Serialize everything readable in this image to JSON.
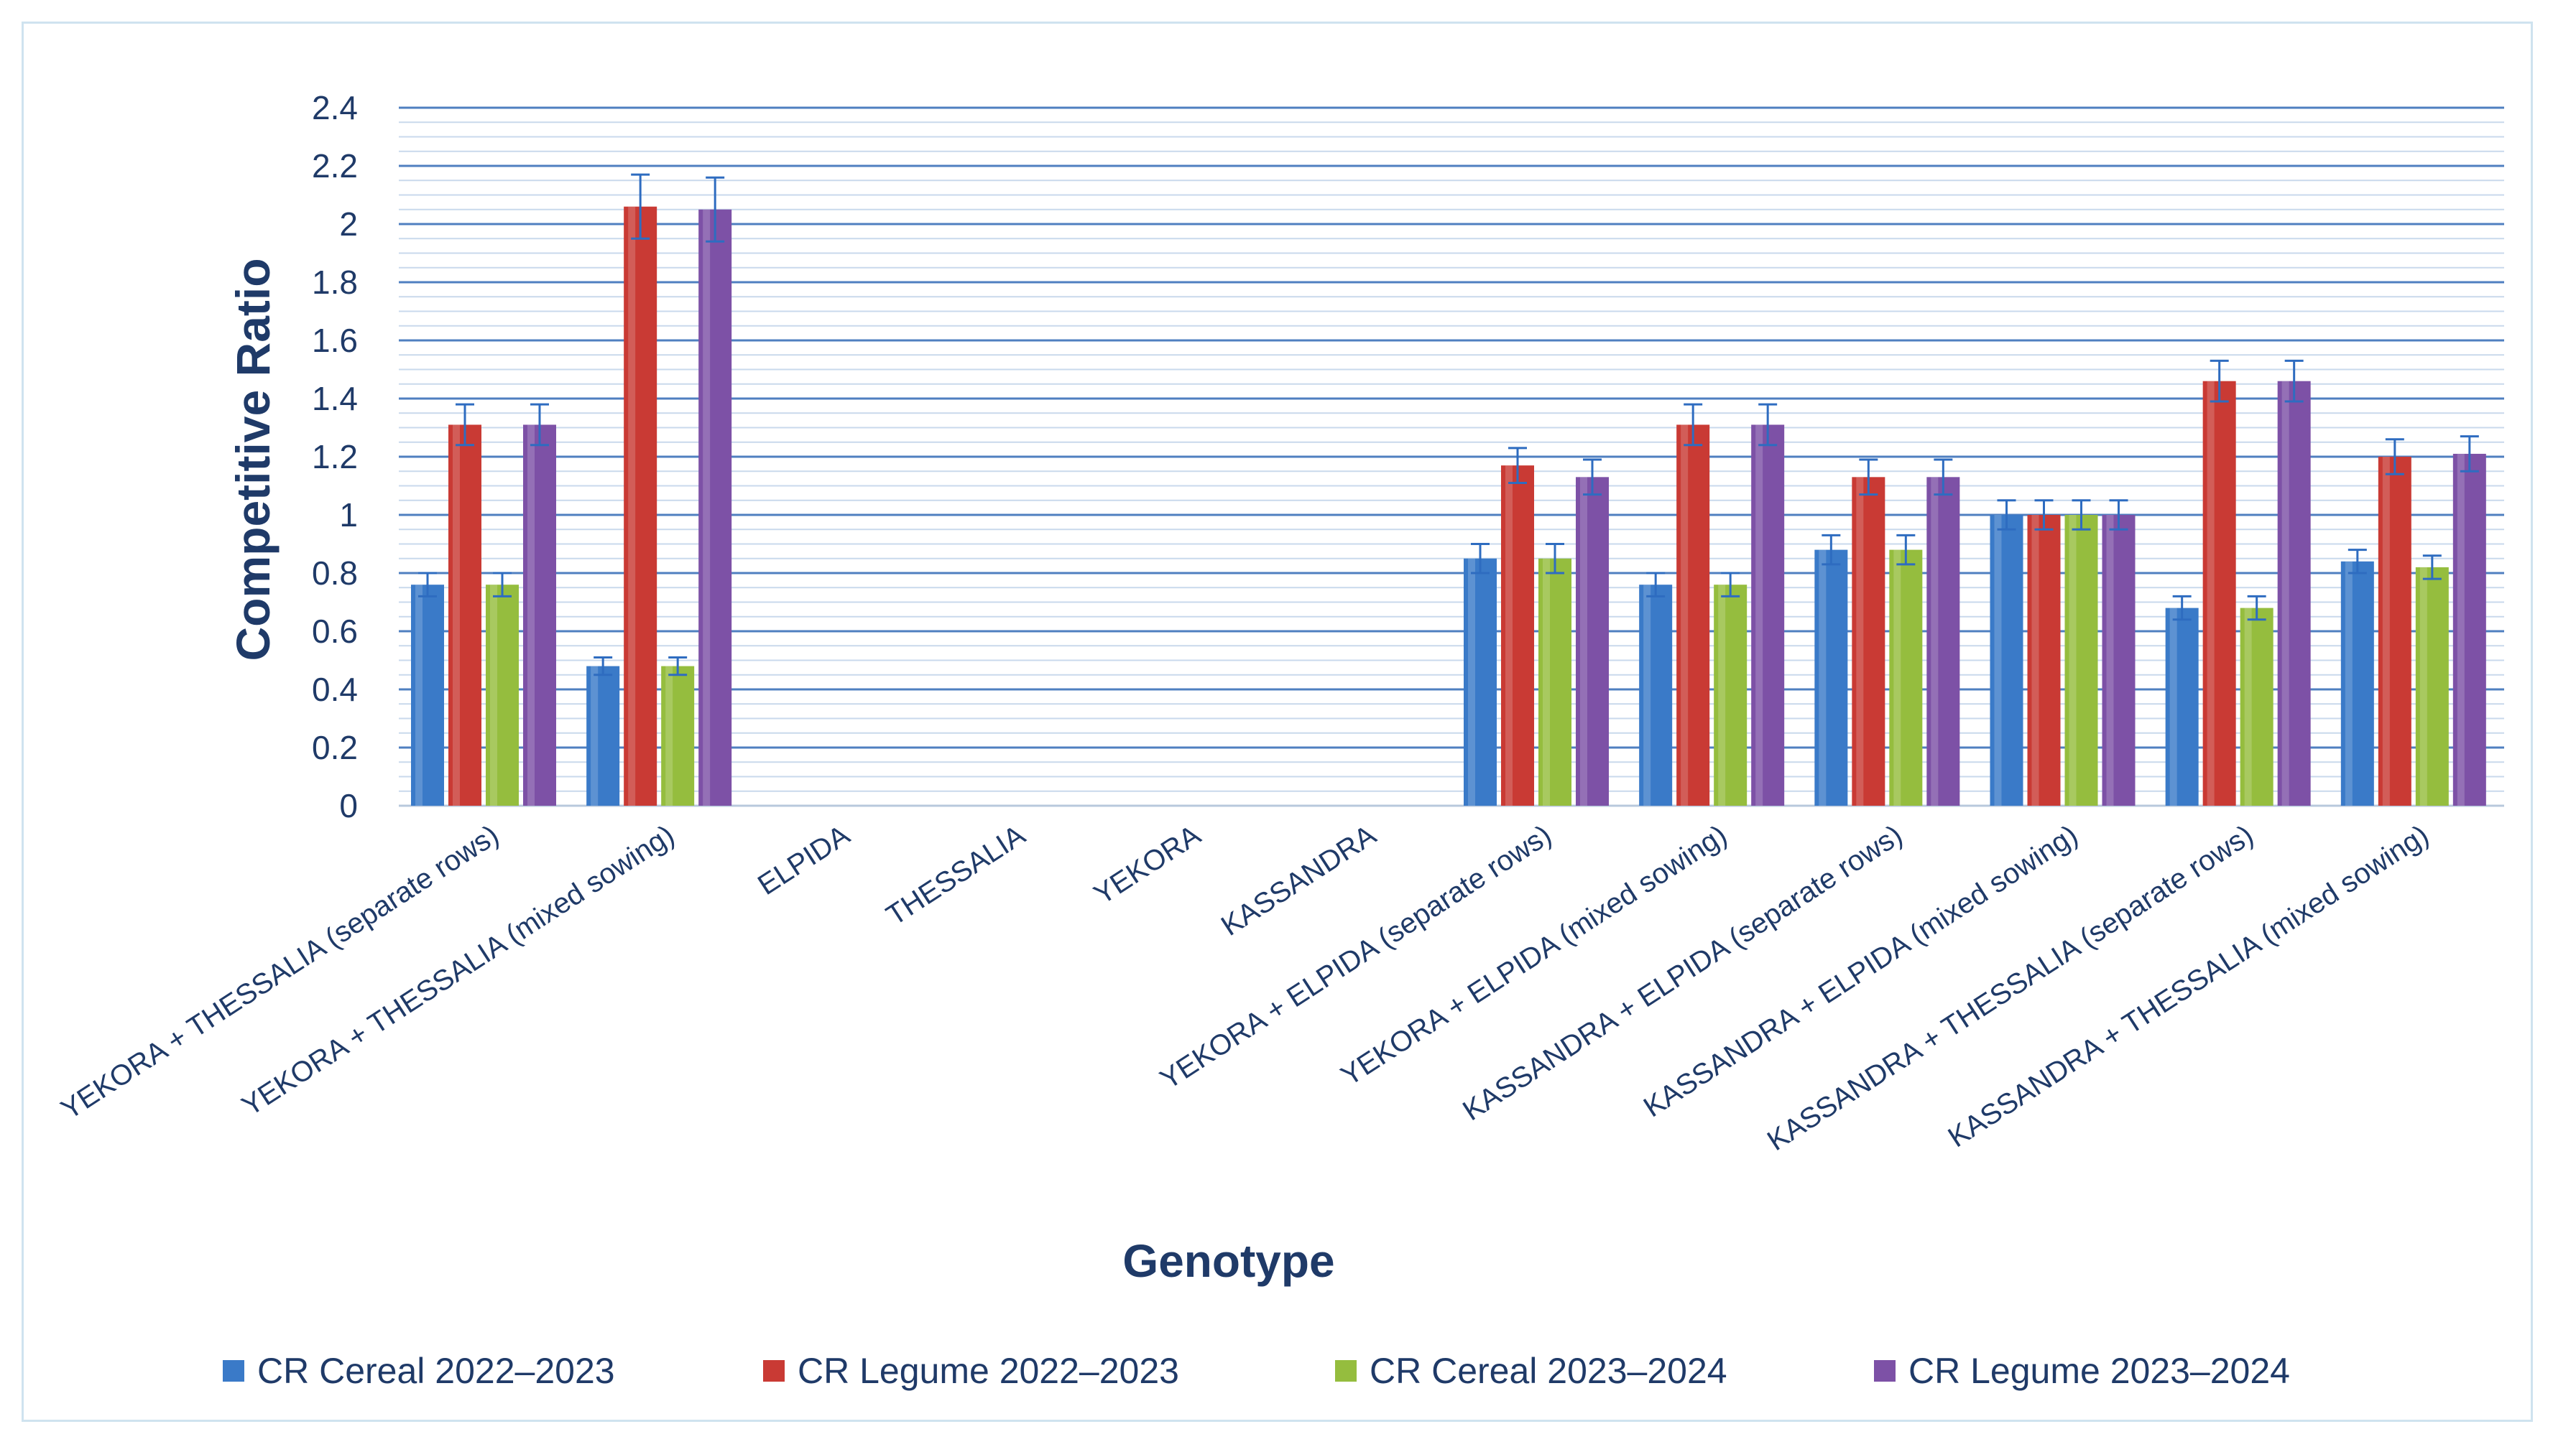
{
  "chart_data": {
    "type": "bar",
    "title": "",
    "xlabel": "Genotype",
    "ylabel": "Competitive Ratio",
    "ylim": [
      0,
      2.4
    ],
    "yticks": [
      "0",
      "0.2",
      "0.4",
      "0.6",
      "0.8",
      "1",
      "1.2",
      "1.4",
      "1.6",
      "1.8",
      "2",
      "2.2",
      "2.4"
    ],
    "grid": true,
    "legend_position": "bottom",
    "categories": [
      "YEKORA + THESSALIA (separate rows)",
      "YEKORA + THESSALIA (mixed sowing)",
      "ELPIDA",
      "THESSALIA",
      "YEKORA",
      "KASSANDRA",
      "YEKORA + ELPIDA (separate rows)",
      "YEKORA + ELPIDA (mixed sowing)",
      "KASSANDRA + ELPIDA (separate rows)",
      "KASSANDRA + ELPIDA (mixed sowing)",
      "KASSANDRA + THESSALIA (separate rows)",
      "KASSANDRA + THESSALIA (mixed sowing)"
    ],
    "series": [
      {
        "name": "CR Cereal 2022–2023",
        "color": "#3a7ac8",
        "values": [
          0.76,
          0.48,
          null,
          null,
          null,
          null,
          0.85,
          0.76,
          0.88,
          1.0,
          0.68,
          0.84
        ],
        "errors": [
          0.04,
          0.03,
          null,
          null,
          null,
          null,
          0.05,
          0.04,
          0.05,
          0.05,
          0.04,
          0.04
        ]
      },
      {
        "name": "CR Legume 2022–2023",
        "color": "#c93a34",
        "values": [
          1.31,
          2.06,
          null,
          null,
          null,
          null,
          1.17,
          1.31,
          1.13,
          1.0,
          1.46,
          1.2
        ],
        "errors": [
          0.07,
          0.11,
          null,
          null,
          null,
          null,
          0.06,
          0.07,
          0.06,
          0.05,
          0.07,
          0.06
        ]
      },
      {
        "name": "CR Cereal 2023–2024",
        "color": "#95bd3e",
        "values": [
          0.76,
          0.48,
          null,
          null,
          null,
          null,
          0.85,
          0.76,
          0.88,
          1.0,
          0.68,
          0.82
        ],
        "errors": [
          0.04,
          0.03,
          null,
          null,
          null,
          null,
          0.05,
          0.04,
          0.05,
          0.05,
          0.04,
          0.04
        ]
      },
      {
        "name": "CR Legume 2023–2024",
        "color": "#7d51a6",
        "values": [
          1.31,
          2.05,
          null,
          null,
          null,
          null,
          1.13,
          1.31,
          1.13,
          1.0,
          1.46,
          1.21
        ],
        "errors": [
          0.07,
          0.11,
          null,
          null,
          null,
          null,
          0.06,
          0.07,
          0.06,
          0.05,
          0.07,
          0.06
        ]
      }
    ],
    "colors": {
      "gridline": "#4f7fc0",
      "minor_gridline": "#c9d9ec",
      "error_bar": "#2e6cc0",
      "text": "#1f3a68"
    }
  }
}
